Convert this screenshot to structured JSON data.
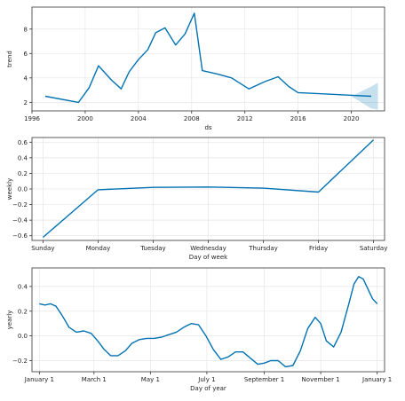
{
  "chart_data": [
    {
      "type": "line",
      "xlabel": "ds",
      "ylabel": "trend",
      "xlim": [
        1996,
        2022.5
      ],
      "ylim": [
        1.3,
        9.8
      ],
      "xticks": [
        1996,
        2000,
        2004,
        2008,
        2012,
        2016,
        2020
      ],
      "xtick_labels": [
        "1996",
        "2000",
        "2004",
        "2008",
        "2012",
        "2016",
        "2020"
      ],
      "yticks": [
        2,
        4,
        6,
        8
      ],
      "ytick_labels": [
        "2",
        "4",
        "6",
        "8"
      ],
      "grid": true,
      "color": "#0072B2",
      "band_color": "#0072B2",
      "series": [
        {
          "x": [
            1997.0,
            1999.5,
            2000.3,
            2001.0,
            2002.0,
            2002.7,
            2003.3,
            2004.0,
            2004.7,
            2005.3,
            2006.0,
            2006.8,
            2007.5,
            2008.2,
            2008.8,
            2010.0,
            2011.0,
            2012.3,
            2013.5,
            2014.5,
            2015.3,
            2016.0,
            2021.5
          ],
          "y": [
            2.5,
            2.0,
            3.2,
            5.0,
            3.8,
            3.1,
            4.5,
            5.5,
            6.3,
            7.7,
            8.1,
            6.7,
            7.6,
            9.3,
            4.6,
            4.3,
            4.0,
            3.1,
            3.7,
            4.1,
            3.3,
            2.8,
            2.5
          ]
        }
      ],
      "uncertainty": {
        "x": [
          2020.0,
          2021.5,
          2022.0
        ],
        "lower": [
          2.5,
          1.5,
          1.4
        ],
        "upper": [
          2.5,
          3.3,
          3.6
        ]
      }
    },
    {
      "type": "line",
      "xlabel": "Day of week",
      "ylabel": "weekly",
      "categories": [
        "Sunday",
        "Monday",
        "Tuesday",
        "Wednesday",
        "Thursday",
        "Friday",
        "Saturday"
      ],
      "ylim": [
        -0.66,
        0.66
      ],
      "yticks": [
        -0.6,
        -0.4,
        -0.2,
        0.0,
        0.2,
        0.4,
        0.6
      ],
      "ytick_labels": [
        "−0.6",
        "−0.4",
        "−0.2",
        "0.0",
        "0.2",
        "0.4",
        "0.6"
      ],
      "grid": true,
      "color": "#0072B2",
      "series": [
        {
          "values": [
            -0.62,
            -0.01,
            0.02,
            0.025,
            0.01,
            -0.04,
            0.63
          ]
        }
      ]
    },
    {
      "type": "line",
      "xlabel": "Day of year",
      "ylabel": "yearly",
      "xlim": [
        -8,
        373
      ],
      "ylim": [
        -0.29,
        0.55
      ],
      "xticks": [
        0,
        59,
        120,
        181,
        243,
        304,
        365
      ],
      "xtick_labels": [
        "January 1",
        "March 1",
        "May 1",
        "July 1",
        "September 1",
        "November 1",
        "January 1"
      ],
      "yticks": [
        -0.2,
        0.0,
        0.2,
        0.4
      ],
      "ytick_labels": [
        "−0.2",
        "0.0",
        "0.2",
        "0.4"
      ],
      "grid": true,
      "color": "#0072B2",
      "series": [
        {
          "x": [
            0,
            6,
            12,
            18,
            25,
            32,
            40,
            48,
            56,
            63,
            70,
            77,
            85,
            93,
            100,
            108,
            116,
            124,
            132,
            140,
            148,
            156,
            164,
            172,
            180,
            188,
            196,
            204,
            212,
            220,
            228,
            236,
            243,
            250,
            258,
            266,
            274,
            282,
            290,
            298,
            304,
            310,
            318,
            326,
            334,
            340,
            345,
            350,
            355,
            360,
            365
          ],
          "y": [
            0.26,
            0.25,
            0.26,
            0.24,
            0.16,
            0.07,
            0.03,
            0.04,
            0.02,
            -0.04,
            -0.11,
            -0.16,
            -0.16,
            -0.12,
            -0.06,
            -0.03,
            -0.02,
            -0.02,
            -0.01,
            0.01,
            0.03,
            0.07,
            0.1,
            0.09,
            0.0,
            -0.11,
            -0.19,
            -0.17,
            -0.13,
            -0.13,
            -0.18,
            -0.23,
            -0.22,
            -0.2,
            -0.2,
            -0.25,
            -0.24,
            -0.12,
            0.06,
            0.15,
            0.1,
            -0.04,
            -0.09,
            0.03,
            0.25,
            0.42,
            0.48,
            0.46,
            0.38,
            0.3,
            0.26
          ]
        }
      ]
    }
  ]
}
